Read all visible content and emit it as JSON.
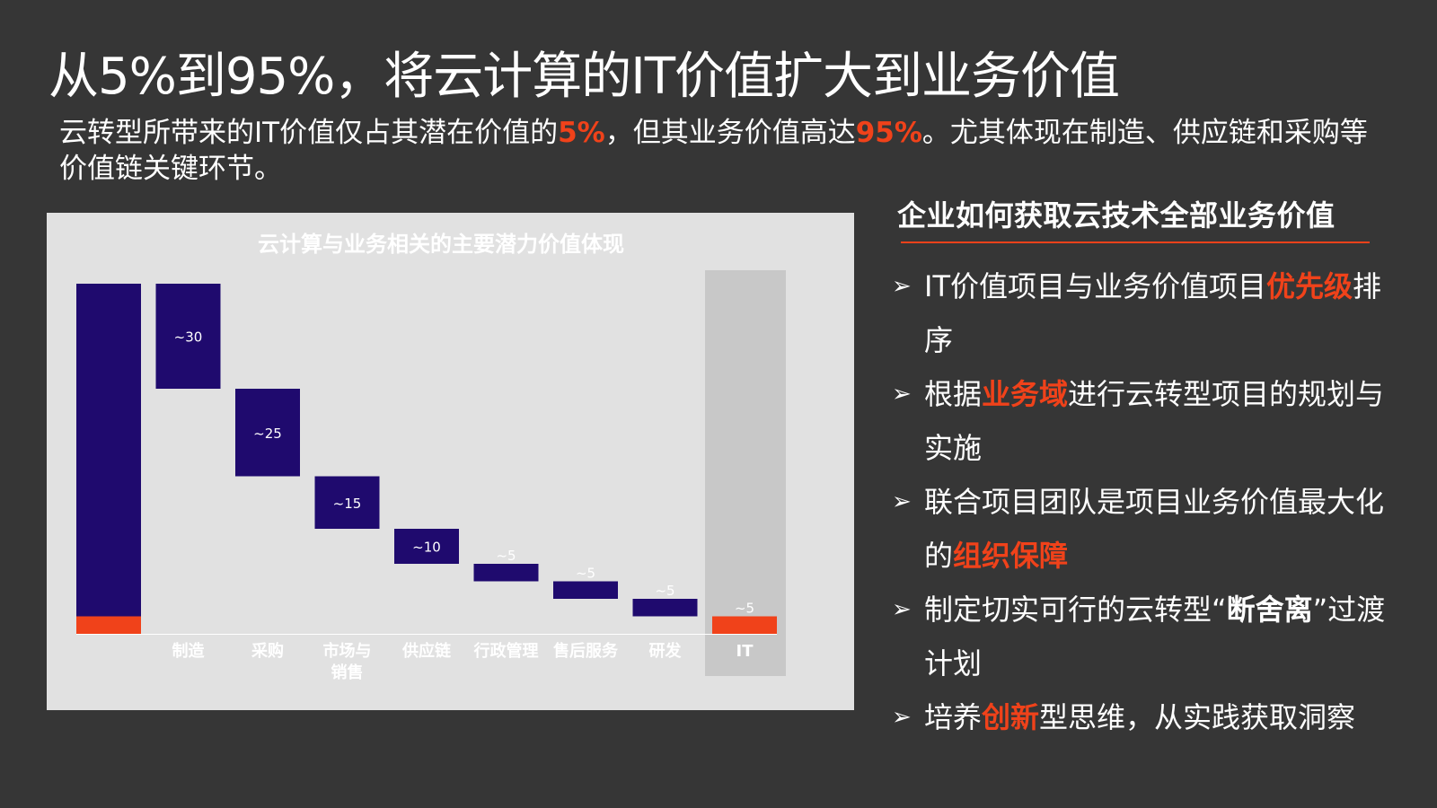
{
  "slide": {
    "title": "从5%到95%，将云计算的IT价值扩大到业务价值",
    "subtitle": {
      "part1": "云转型所带来的IT价值仅占其潜在价值的",
      "highlight1": "5%",
      "part2": "，但其业务价值高达",
      "highlight2": "95%",
      "part3": "。尤其体现在制造、供应链和采购等价值链关键环节。"
    }
  },
  "right_panel": {
    "title": "企业如何获取云技术全部业务价值",
    "arrow_icon": "➢",
    "bullets": [
      {
        "before": "IT价值项目与业务价值项目",
        "highlight": "优先级",
        "after": "排序"
      },
      {
        "before": "根据",
        "highlight": "业务域",
        "after": "进行云转型项目的规划与实施"
      },
      {
        "before": "联合项目团队是项目业务价值最大化的",
        "highlight": "组织保障",
        "after": ""
      },
      {
        "before": "制定切实可行的云转型“",
        "bold": "断舍离",
        "after": "”过渡计划"
      },
      {
        "before": "培养",
        "highlight": "创新",
        "after": "型思维，从实践获取洞察"
      }
    ]
  },
  "colors": {
    "background": "#363636",
    "accent": "#f0421a",
    "bar": "#1f0a6e",
    "panel": "#e1e1e1",
    "it_column": "#c8c8c8"
  },
  "chart_data": {
    "type": "waterfall",
    "title": "云计算与业务相关的主要潜力价值体现",
    "total": 100,
    "total_it_part": 5,
    "categories": [
      "制造",
      "采购",
      "市场与\n销售",
      "供应链",
      "行政管理",
      "售后服务",
      "研发",
      "IT"
    ],
    "values": [
      30,
      25,
      15,
      10,
      5,
      5,
      5,
      5
    ],
    "value_labels": [
      "~30",
      "~25",
      "~15",
      "~10",
      "~5",
      "~5",
      "~5",
      "~5"
    ],
    "highlight_category": "IT",
    "ylim": [
      0,
      100
    ],
    "grid": false,
    "legend": "none"
  }
}
